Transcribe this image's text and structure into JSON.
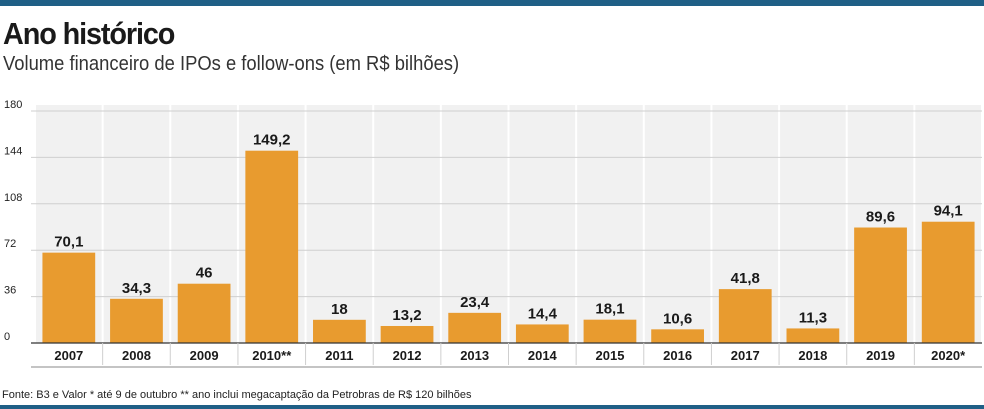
{
  "title": "Ano histórico",
  "subtitle": "Volume financeiro de IPOs e follow-ons (em R$ bilhões)",
  "source": "Fonte: B3 e Valor * até 9 de outubro ** ano inclui megacaptação da Petrobras de R$ 120 bilhões",
  "colors": {
    "bar": "#e89b2f",
    "rule": "#1f5f86",
    "column_bg": "#f1f1f1",
    "grid": "#cfcfcf"
  },
  "chart_data": {
    "type": "bar",
    "title": "Ano histórico",
    "subtitle": "Volume financeiro de IPOs e follow-ons (em R$ bilhões)",
    "categories": [
      "2007",
      "2008",
      "2009",
      "2010**",
      "2011",
      "2012",
      "2013",
      "2014",
      "2015",
      "2016",
      "2017",
      "2018",
      "2019",
      "2020*"
    ],
    "values": [
      70.1,
      34.3,
      46,
      149.2,
      18,
      13.2,
      23.4,
      14.4,
      18.1,
      10.6,
      41.8,
      11.3,
      89.6,
      94.1
    ],
    "value_labels": [
      "70,1",
      "34,3",
      "46",
      "149,2",
      "18",
      "13,2",
      "23,4",
      "14,4",
      "18,1",
      "10,6",
      "41,8",
      "11,3",
      "89,6",
      "94,1"
    ],
    "y_ticks": [
      "0",
      "36",
      "72",
      "108",
      "144",
      "180"
    ],
    "ylim": [
      0,
      180
    ],
    "xlabel": "",
    "ylabel": "",
    "grid": true,
    "legend": "none"
  }
}
